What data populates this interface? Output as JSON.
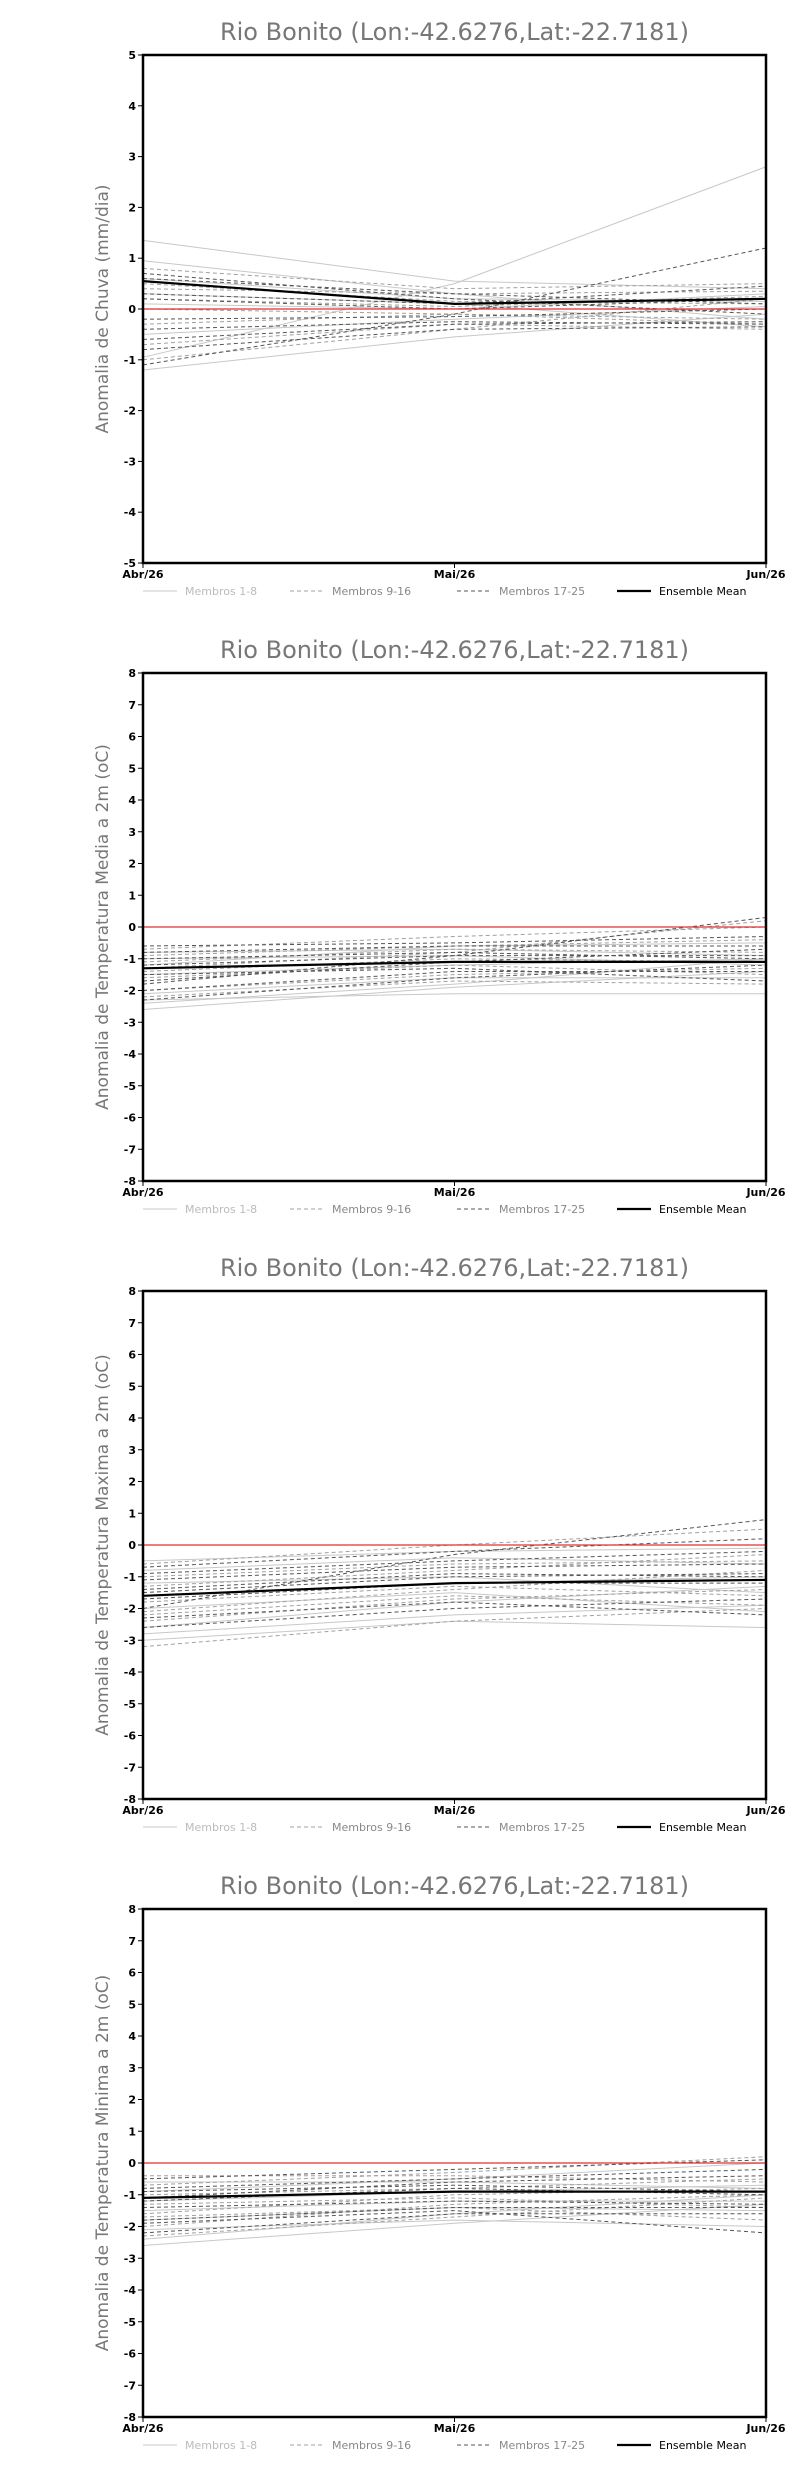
{
  "chart_data": [
    {
      "type": "line",
      "title": "Rio Bonito (Lon:-42.6276,Lat:-22.7181)",
      "ylabel": "Anomalia de Chuva (mm/dia)",
      "xlabel": "",
      "categories": [
        "Abr/26",
        "Mai/26",
        "Jun/26"
      ],
      "ylim": [
        -5,
        5
      ],
      "yticks": [
        -5,
        -4,
        -3,
        -2,
        -1,
        0,
        1,
        2,
        3,
        4,
        5
      ],
      "grid": false,
      "legend_position": "bottom",
      "zero_line_color": "#e03030",
      "legend": [
        {
          "label": "Membros 1-8",
          "color": "#c8c8c8",
          "style": "solid",
          "group": 0
        },
        {
          "label": "Membros 9-16",
          "color": "#a0a0a0",
          "style": "dashed",
          "group": 1
        },
        {
          "label": "Membros 17-25",
          "color": "#555555",
          "style": "dashed",
          "group": 2
        },
        {
          "label": "Ensemble Mean",
          "color": "#000000",
          "style": "solid",
          "group": 3
        }
      ],
      "series": [
        {
          "group": 0,
          "values": [
            1.35,
            0.55,
            0.4
          ]
        },
        {
          "group": 0,
          "values": [
            -0.95,
            0.5,
            2.8
          ]
        },
        {
          "group": 0,
          "values": [
            0.3,
            0.1,
            -0.35
          ]
        },
        {
          "group": 0,
          "values": [
            -0.5,
            -0.2,
            0.05
          ]
        },
        {
          "group": 0,
          "values": [
            0.95,
            0.3,
            -0.2
          ]
        },
        {
          "group": 0,
          "values": [
            -1.2,
            -0.55,
            -0.1
          ]
        },
        {
          "group": 0,
          "values": [
            0.1,
            0.0,
            0.3
          ]
        },
        {
          "group": 0,
          "values": [
            0.6,
            0.2,
            0.15
          ]
        },
        {
          "group": 1,
          "values": [
            0.8,
            0.4,
            0.5
          ]
        },
        {
          "group": 1,
          "values": [
            -0.7,
            -0.3,
            -0.4
          ]
        },
        {
          "group": 1,
          "values": [
            0.2,
            0.05,
            0.25
          ]
        },
        {
          "group": 1,
          "values": [
            -0.3,
            -0.1,
            -0.2
          ]
        },
        {
          "group": 1,
          "values": [
            0.5,
            0.15,
            0.1
          ]
        },
        {
          "group": 1,
          "values": [
            -1.0,
            -0.4,
            0.2
          ]
        },
        {
          "group": 1,
          "values": [
            0.0,
            -0.1,
            -0.3
          ]
        },
        {
          "group": 1,
          "values": [
            0.4,
            0.3,
            0.35
          ]
        },
        {
          "group": 2,
          "values": [
            -1.1,
            -0.1,
            1.2
          ]
        },
        {
          "group": 2,
          "values": [
            0.6,
            0.3,
            0.1
          ]
        },
        {
          "group": 2,
          "values": [
            -0.6,
            -0.3,
            -0.25
          ]
        },
        {
          "group": 2,
          "values": [
            0.2,
            0.0,
            0.2
          ]
        },
        {
          "group": 2,
          "values": [
            -0.2,
            -0.15,
            0.0
          ]
        },
        {
          "group": 2,
          "values": [
            0.7,
            0.2,
            -0.1
          ]
        },
        {
          "group": 2,
          "values": [
            -0.8,
            -0.4,
            -0.35
          ]
        },
        {
          "group": 2,
          "values": [
            0.3,
            0.1,
            0.45
          ]
        },
        {
          "group": 2,
          "values": [
            -0.4,
            -0.25,
            -0.3
          ]
        },
        {
          "group": 3,
          "values": [
            0.55,
            0.1,
            0.2
          ]
        }
      ]
    },
    {
      "type": "line",
      "title": "Rio Bonito (Lon:-42.6276,Lat:-22.7181)",
      "ylabel": "Anomalia de Temperatura Media a 2m (oC)",
      "xlabel": "",
      "categories": [
        "Abr/26",
        "Mai/26",
        "Jun/26"
      ],
      "ylim": [
        -8,
        8
      ],
      "yticks": [
        -8,
        -7,
        -6,
        -5,
        -4,
        -3,
        -2,
        -1,
        0,
        1,
        2,
        3,
        4,
        5,
        6,
        7,
        8
      ],
      "grid": false,
      "legend_position": "bottom",
      "zero_line_color": "#e03030",
      "legend": [
        {
          "label": "Membros 1-8",
          "color": "#c8c8c8",
          "style": "solid",
          "group": 0
        },
        {
          "label": "Membros 9-16",
          "color": "#a0a0a0",
          "style": "dashed",
          "group": 1
        },
        {
          "label": "Membros 17-25",
          "color": "#555555",
          "style": "dashed",
          "group": 2
        },
        {
          "label": "Ensemble Mean",
          "color": "#000000",
          "style": "solid",
          "group": 3
        }
      ],
      "series": [
        {
          "group": 0,
          "values": [
            -2.6,
            -1.9,
            -1.4
          ]
        },
        {
          "group": 0,
          "values": [
            -2.3,
            -2.1,
            -2.1
          ]
        },
        {
          "group": 0,
          "values": [
            -0.8,
            -0.7,
            -0.9
          ]
        },
        {
          "group": 0,
          "values": [
            -1.5,
            -1.2,
            -1.0
          ]
        },
        {
          "group": 0,
          "values": [
            -2.1,
            -1.6,
            -1.6
          ]
        },
        {
          "group": 0,
          "values": [
            -1.0,
            -0.9,
            -1.2
          ]
        },
        {
          "group": 0,
          "values": [
            -2.4,
            -1.8,
            -1.0
          ]
        },
        {
          "group": 0,
          "values": [
            -1.2,
            -0.6,
            -0.5
          ]
        },
        {
          "group": 1,
          "values": [
            -1.3,
            -0.8,
            0.2
          ]
        },
        {
          "group": 1,
          "values": [
            -2.0,
            -1.5,
            -1.3
          ]
        },
        {
          "group": 1,
          "values": [
            -0.9,
            -0.6,
            -0.4
          ]
        },
        {
          "group": 1,
          "values": [
            -1.6,
            -1.2,
            -1.5
          ]
        },
        {
          "group": 1,
          "values": [
            -1.1,
            -0.7,
            -0.8
          ]
        },
        {
          "group": 1,
          "values": [
            -2.2,
            -1.7,
            -1.8
          ]
        },
        {
          "group": 1,
          "values": [
            -0.7,
            -0.3,
            0.0
          ]
        },
        {
          "group": 1,
          "values": [
            -1.4,
            -1.0,
            -1.1
          ]
        },
        {
          "group": 2,
          "values": [
            -1.8,
            -0.9,
            0.3
          ]
        },
        {
          "group": 2,
          "values": [
            -0.6,
            -0.5,
            -0.3
          ]
        },
        {
          "group": 2,
          "values": [
            -1.2,
            -0.9,
            -0.9
          ]
        },
        {
          "group": 2,
          "values": [
            -2.3,
            -1.6,
            -1.2
          ]
        },
        {
          "group": 2,
          "values": [
            -1.0,
            -0.8,
            -1.0
          ]
        },
        {
          "group": 2,
          "values": [
            -1.5,
            -1.3,
            -1.7
          ]
        },
        {
          "group": 2,
          "values": [
            -0.8,
            -0.6,
            -0.6
          ]
        },
        {
          "group": 2,
          "values": [
            -1.7,
            -1.1,
            -0.7
          ]
        },
        {
          "group": 2,
          "values": [
            -2.0,
            -1.4,
            -1.4
          ]
        },
        {
          "group": 3,
          "values": [
            -1.3,
            -1.1,
            -1.1
          ]
        }
      ]
    },
    {
      "type": "line",
      "title": "Rio Bonito (Lon:-42.6276,Lat:-22.7181)",
      "ylabel": "Anomalia de Temperatura Maxima a 2m (oC)",
      "xlabel": "",
      "categories": [
        "Abr/26",
        "Mai/26",
        "Jun/26"
      ],
      "ylim": [
        -8,
        8
      ],
      "yticks": [
        -8,
        -7,
        -6,
        -5,
        -4,
        -3,
        -2,
        -1,
        0,
        1,
        2,
        3,
        4,
        5,
        6,
        7,
        8
      ],
      "grid": false,
      "legend_position": "bottom",
      "zero_line_color": "#e03030",
      "legend": [
        {
          "label": "Membros 1-8",
          "color": "#c8c8c8",
          "style": "solid",
          "group": 0
        },
        {
          "label": "Membros 9-16",
          "color": "#a0a0a0",
          "style": "dashed",
          "group": 1
        },
        {
          "label": "Membros 17-25",
          "color": "#555555",
          "style": "dashed",
          "group": 2
        },
        {
          "label": "Ensemble Mean",
          "color": "#000000",
          "style": "solid",
          "group": 3
        }
      ],
      "series": [
        {
          "group": 0,
          "values": [
            -3.0,
            -2.4,
            -2.6
          ]
        },
        {
          "group": 0,
          "values": [
            -2.6,
            -1.8,
            -1.3
          ]
        },
        {
          "group": 0,
          "values": [
            -1.2,
            -1.0,
            -1.5
          ]
        },
        {
          "group": 0,
          "values": [
            -2.0,
            -1.5,
            -2.1
          ]
        },
        {
          "group": 0,
          "values": [
            -0.8,
            -0.4,
            -0.6
          ]
        },
        {
          "group": 0,
          "values": [
            -2.8,
            -2.2,
            -1.9
          ]
        },
        {
          "group": 0,
          "values": [
            -1.6,
            -1.2,
            -1.0
          ]
        },
        {
          "group": 0,
          "values": [
            -0.5,
            -0.2,
            -0.1
          ]
        },
        {
          "group": 1,
          "values": [
            -3.2,
            -2.4,
            -2.0
          ]
        },
        {
          "group": 1,
          "values": [
            -2.1,
            -1.4,
            -0.8
          ]
        },
        {
          "group": 1,
          "values": [
            -1.0,
            -0.6,
            -0.5
          ]
        },
        {
          "group": 1,
          "values": [
            -1.8,
            -1.3,
            -1.6
          ]
        },
        {
          "group": 1,
          "values": [
            -0.6,
            0.0,
            0.5
          ]
        },
        {
          "group": 1,
          "values": [
            -2.4,
            -1.7,
            -1.4
          ]
        },
        {
          "group": 1,
          "values": [
            -1.3,
            -0.8,
            -0.3
          ]
        },
        {
          "group": 1,
          "values": [
            -2.2,
            -1.6,
            -1.9
          ]
        },
        {
          "group": 2,
          "values": [
            -2.0,
            -0.3,
            0.8
          ]
        },
        {
          "group": 2,
          "values": [
            -1.4,
            -0.9,
            -1.0
          ]
        },
        {
          "group": 2,
          "values": [
            -0.9,
            -0.5,
            -0.2
          ]
        },
        {
          "group": 2,
          "values": [
            -2.3,
            -1.8,
            -2.2
          ]
        },
        {
          "group": 2,
          "values": [
            -1.1,
            -0.7,
            -0.6
          ]
        },
        {
          "group": 2,
          "values": [
            -1.7,
            -1.2,
            -1.2
          ]
        },
        {
          "group": 2,
          "values": [
            -0.7,
            -0.2,
            0.2
          ]
        },
        {
          "group": 2,
          "values": [
            -2.6,
            -2.0,
            -1.7
          ]
        },
        {
          "group": 2,
          "values": [
            -1.5,
            -1.0,
            -0.9
          ]
        },
        {
          "group": 3,
          "values": [
            -1.6,
            -1.2,
            -1.1
          ]
        }
      ]
    },
    {
      "type": "line",
      "title": "Rio Bonito (Lon:-42.6276,Lat:-22.7181)",
      "ylabel": "Anomalia de Temperatura Minima a 2m (oC)",
      "xlabel": "",
      "categories": [
        "Abr/26",
        "Mai/26",
        "Jun/26"
      ],
      "ylim": [
        -8,
        8
      ],
      "yticks": [
        -8,
        -7,
        -6,
        -5,
        -4,
        -3,
        -2,
        -1,
        0,
        1,
        2,
        3,
        4,
        5,
        6,
        7,
        8
      ],
      "grid": false,
      "legend_position": "bottom",
      "zero_line_color": "#e03030",
      "legend": [
        {
          "label": "Membros 1-8",
          "color": "#c8c8c8",
          "style": "solid",
          "group": 0
        },
        {
          "label": "Membros 9-16",
          "color": "#a0a0a0",
          "style": "dashed",
          "group": 1
        },
        {
          "label": "Membros 17-25",
          "color": "#555555",
          "style": "dashed",
          "group": 2
        },
        {
          "label": "Ensemble Mean",
          "color": "#000000",
          "style": "solid",
          "group": 3
        }
      ],
      "series": [
        {
          "group": 0,
          "values": [
            -2.4,
            -1.6,
            -1.0
          ]
        },
        {
          "group": 0,
          "values": [
            -1.8,
            -1.4,
            -1.5
          ]
        },
        {
          "group": 0,
          "values": [
            -0.6,
            -0.6,
            -0.8
          ]
        },
        {
          "group": 0,
          "values": [
            -2.1,
            -1.8,
            -2.0
          ]
        },
        {
          "group": 0,
          "values": [
            -1.2,
            -0.9,
            -0.7
          ]
        },
        {
          "group": 0,
          "values": [
            -0.9,
            -0.5,
            0.0
          ]
        },
        {
          "group": 0,
          "values": [
            -2.6,
            -1.9,
            -1.3
          ]
        },
        {
          "group": 0,
          "values": [
            -1.5,
            -1.2,
            -1.2
          ]
        },
        {
          "group": 1,
          "values": [
            -2.0,
            -1.3,
            -1.0
          ]
        },
        {
          "group": 1,
          "values": [
            -0.7,
            -0.3,
            0.2
          ]
        },
        {
          "group": 1,
          "values": [
            -1.3,
            -1.1,
            -1.4
          ]
        },
        {
          "group": 1,
          "values": [
            -1.7,
            -1.4,
            -1.8
          ]
        },
        {
          "group": 1,
          "values": [
            -1.0,
            -0.8,
            -0.5
          ]
        },
        {
          "group": 1,
          "values": [
            -2.3,
            -1.7,
            -1.1
          ]
        },
        {
          "group": 1,
          "values": [
            -0.4,
            -0.4,
            -0.6
          ]
        },
        {
          "group": 1,
          "values": [
            -1.6,
            -1.0,
            -0.8
          ]
        },
        {
          "group": 2,
          "values": [
            -1.1,
            -0.6,
            -0.4
          ]
        },
        {
          "group": 2,
          "values": [
            -1.9,
            -1.5,
            -2.2
          ]
        },
        {
          "group": 2,
          "values": [
            -0.8,
            -0.5,
            -0.2
          ]
        },
        {
          "group": 2,
          "values": [
            -1.4,
            -1.2,
            -1.3
          ]
        },
        {
          "group": 2,
          "values": [
            -2.2,
            -1.6,
            -1.6
          ]
        },
        {
          "group": 2,
          "values": [
            -0.5,
            -0.2,
            0.1
          ]
        },
        {
          "group": 2,
          "values": [
            -1.2,
            -0.8,
            -1.0
          ]
        },
        {
          "group": 2,
          "values": [
            -1.8,
            -1.4,
            -1.4
          ]
        },
        {
          "group": 2,
          "values": [
            -0.9,
            -0.7,
            -0.9
          ]
        },
        {
          "group": 3,
          "values": [
            -1.1,
            -0.9,
            -0.9
          ]
        }
      ]
    }
  ]
}
